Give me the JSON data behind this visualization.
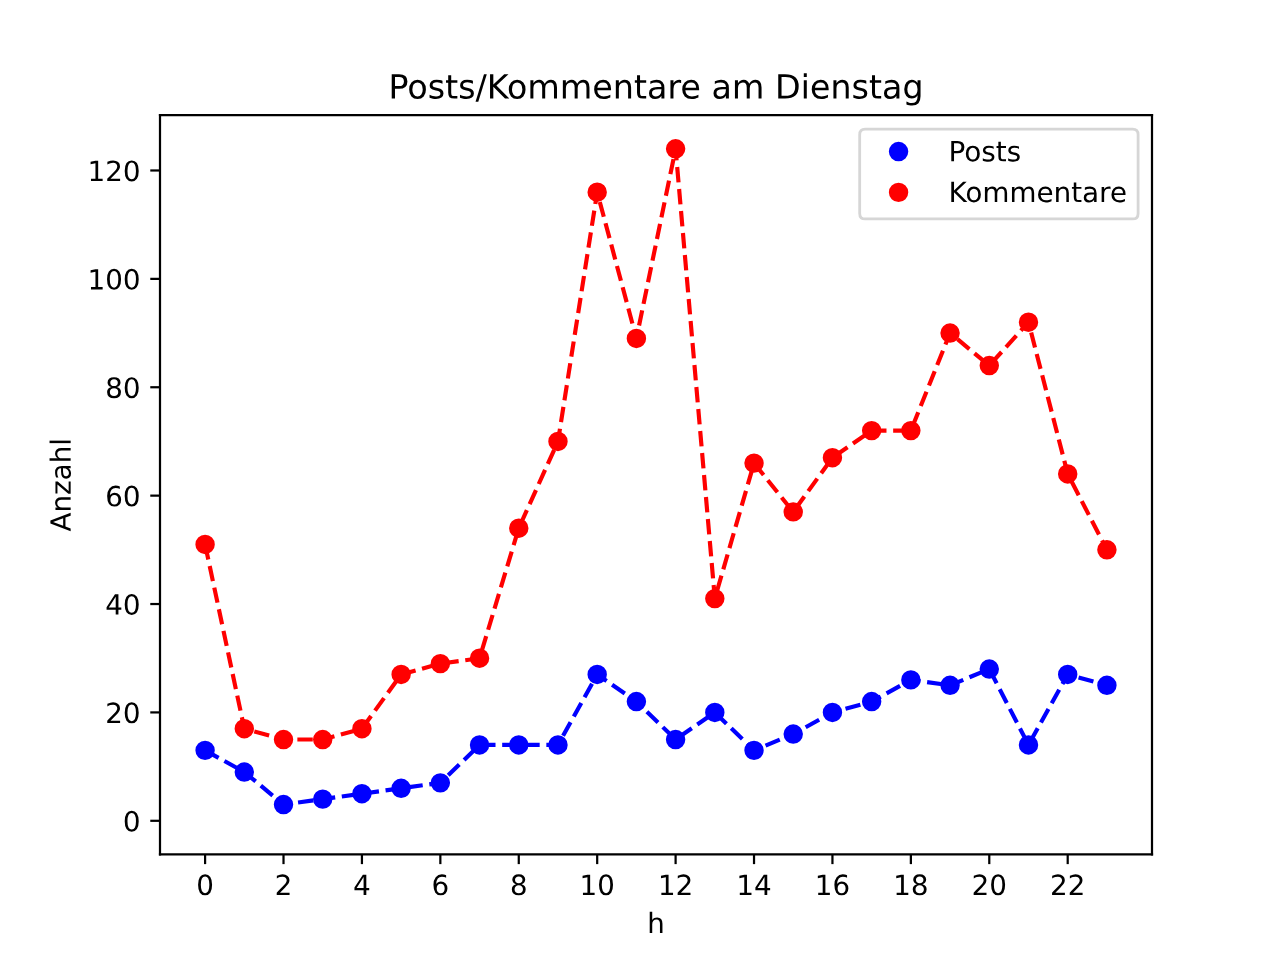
{
  "chart_data": {
    "type": "line",
    "title": "Posts/Kommentare am Dienstag",
    "xlabel": "h",
    "ylabel": "Anzahl",
    "x": [
      0,
      1,
      2,
      3,
      4,
      5,
      6,
      7,
      8,
      9,
      10,
      11,
      12,
      13,
      14,
      15,
      16,
      17,
      18,
      19,
      20,
      21,
      22,
      23
    ],
    "series": [
      {
        "name": "Posts",
        "color": "#0000ff",
        "values": [
          13,
          9,
          3,
          4,
          5,
          6,
          7,
          14,
          14,
          14,
          27,
          22,
          15,
          20,
          13,
          16,
          20,
          22,
          26,
          25,
          28,
          14,
          27,
          25
        ]
      },
      {
        "name": "Kommentare",
        "color": "#ff0000",
        "values": [
          51,
          17,
          15,
          15,
          17,
          27,
          29,
          30,
          54,
          70,
          116,
          89,
          124,
          41,
          66,
          57,
          67,
          72,
          72,
          90,
          84,
          92,
          64,
          50
        ]
      }
    ],
    "xlim": [
      -1.15,
      24.15
    ],
    "ylim": [
      -6.2,
      130.2
    ],
    "xticks": [
      0,
      2,
      4,
      6,
      8,
      10,
      12,
      14,
      16,
      18,
      20,
      22
    ],
    "yticks": [
      0,
      20,
      40,
      60,
      80,
      100,
      120
    ],
    "marker": "circle",
    "line_style": "dashed",
    "grid": false,
    "legend": "top right"
  }
}
